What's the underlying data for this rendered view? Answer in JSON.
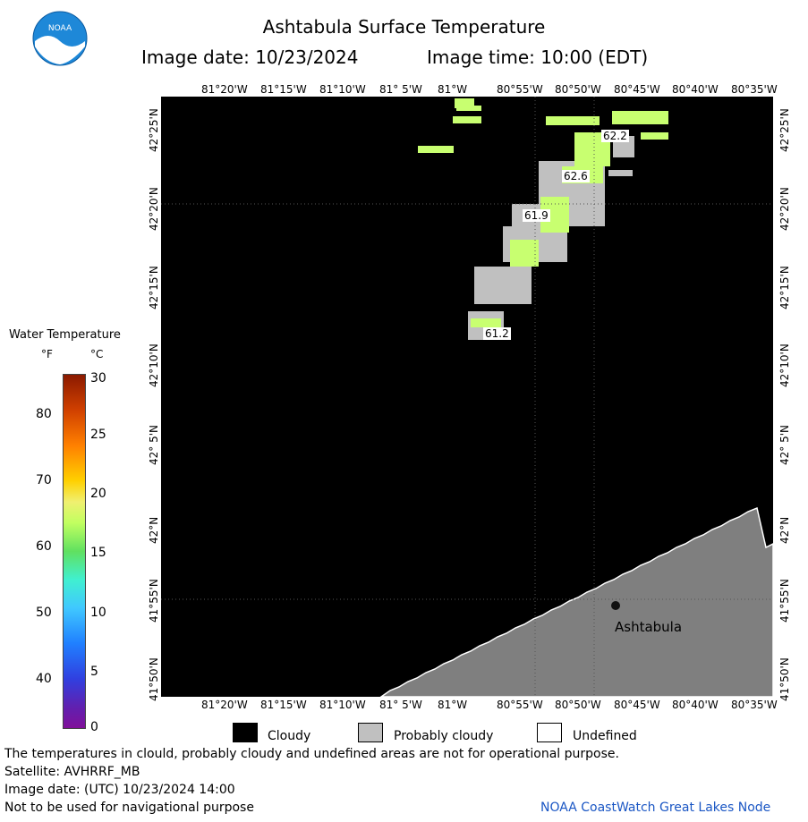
{
  "header": {
    "title": "Ashtabula Surface Temperature",
    "image_date_label": "Image date: 10/23/2024",
    "image_time_label": "Image time: 10:00 (EDT)",
    "logo_text": "NOAA"
  },
  "colorbar": {
    "title": "Water Temperature",
    "unit_f": "°F",
    "unit_c": "°C",
    "f_ticks": [
      "80",
      "70",
      "60",
      "50",
      "40"
    ],
    "c_ticks": [
      "30",
      "25",
      "20",
      "15",
      "10",
      "5",
      "0"
    ]
  },
  "axes": {
    "lon_labels": [
      "81°20'W",
      "81°15'W",
      "81°10'W",
      "81° 5'W",
      "81°W",
      "80°55'W",
      "80°50'W",
      "80°45'W",
      "80°40'W",
      "80°35'W"
    ],
    "lat_labels": [
      "42°25'N",
      "42°20'N",
      "42°15'N",
      "42°10'N",
      "42° 5'N",
      "42°N",
      "41°55'N",
      "41°50'N"
    ]
  },
  "map": {
    "place_label": "Ashtabula",
    "temperatures": [
      "62.2",
      "62.6",
      "61.9",
      "61.2"
    ],
    "colors": {
      "cloudy": "#000000",
      "probably_cloudy": "#c0c0c0",
      "land": "#7f7f7f",
      "water_61": "#c8ff70"
    }
  },
  "legend": {
    "cloudy": "Cloudy",
    "probably_cloudy": "Probably cloudy",
    "undefined": "Undefined"
  },
  "footer": {
    "note": "The temperatures in clould, probably cloudy and undefined areas are not for operational purpose.",
    "satellite": "Satellite: AVHRRF_MB",
    "utc_date": "Image date: (UTC) 10/23/2024  14:00",
    "nav_warning": "Not to be used for navigational purpose",
    "credit": "NOAA CoastWatch Great Lakes Node"
  }
}
